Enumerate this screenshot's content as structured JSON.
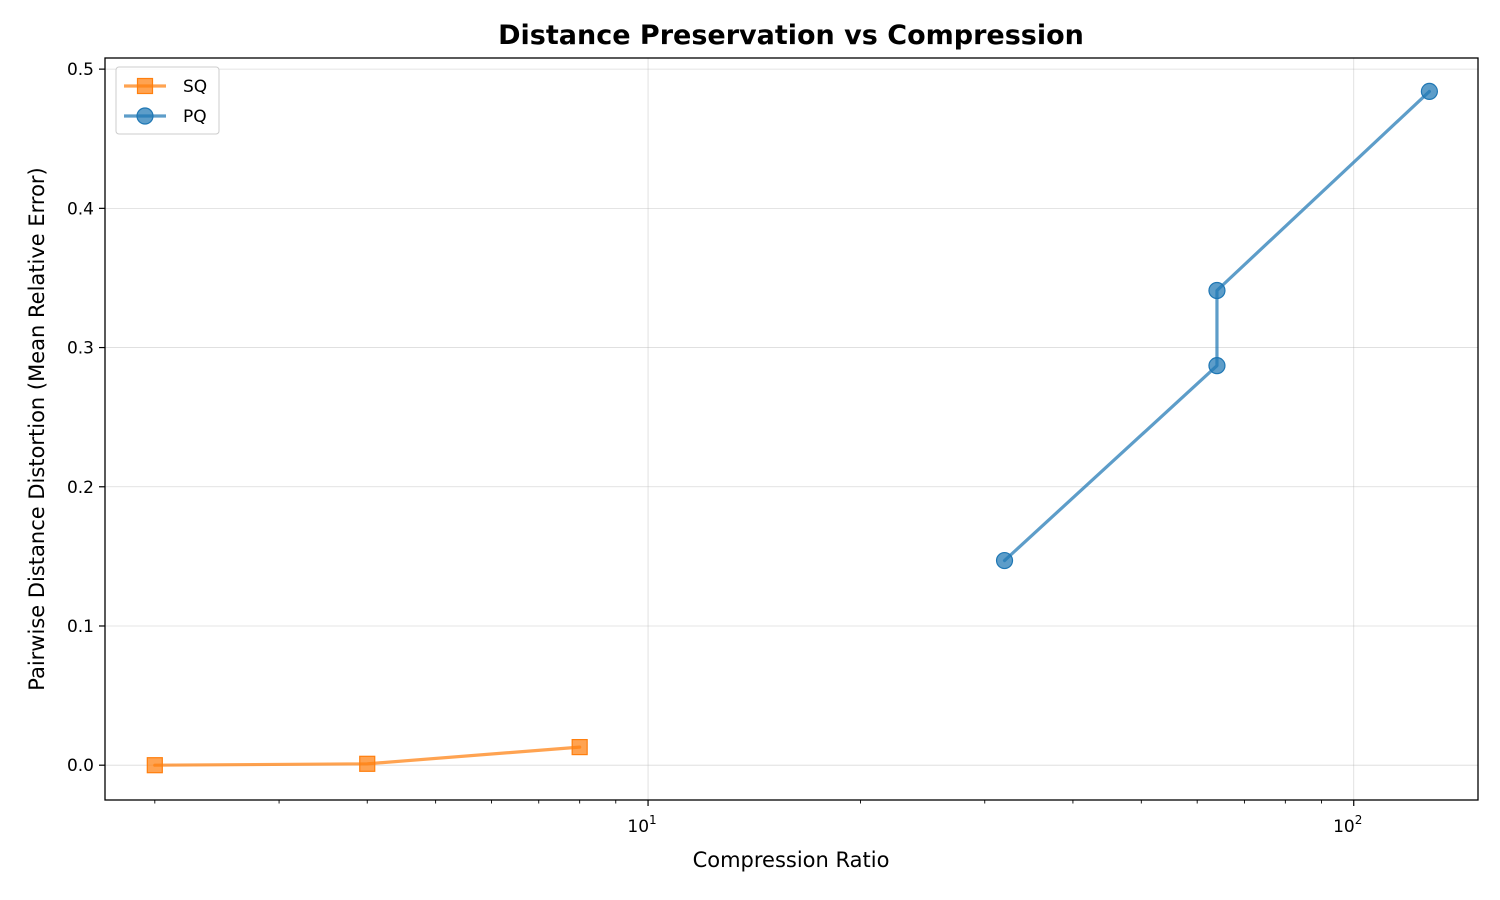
{
  "chart_data": {
    "type": "line",
    "title": "Distance Preservation vs Compression",
    "xlabel": "Compression Ratio",
    "ylabel": "Pairwise Distance Distortion (Mean Relative Error)",
    "xscale": "log",
    "xlim": [
      1.7,
      150
    ],
    "ylim": [
      -0.025,
      0.508
    ],
    "x_ticks": [
      {
        "value": 10,
        "base": "10",
        "exp": "1"
      },
      {
        "value": 100,
        "base": "10",
        "exp": "2"
      }
    ],
    "y_ticks": [
      {
        "value": 0.0,
        "label": "0.0"
      },
      {
        "value": 0.1,
        "label": "0.1"
      },
      {
        "value": 0.2,
        "label": "0.2"
      },
      {
        "value": 0.3,
        "label": "0.3"
      },
      {
        "value": 0.4,
        "label": "0.4"
      },
      {
        "value": 0.5,
        "label": "0.5"
      }
    ],
    "grid": true,
    "legend_position": "upper-left",
    "series": [
      {
        "name": "SQ",
        "color": "#ff7f0e",
        "marker": "square",
        "x": [
          2,
          4,
          8
        ],
        "y": [
          0.0,
          0.001,
          0.013
        ]
      },
      {
        "name": "PQ",
        "color": "#1f77b4",
        "marker": "circle",
        "x": [
          32,
          64,
          64,
          128
        ],
        "y": [
          0.147,
          0.287,
          0.341,
          0.484
        ]
      }
    ]
  }
}
